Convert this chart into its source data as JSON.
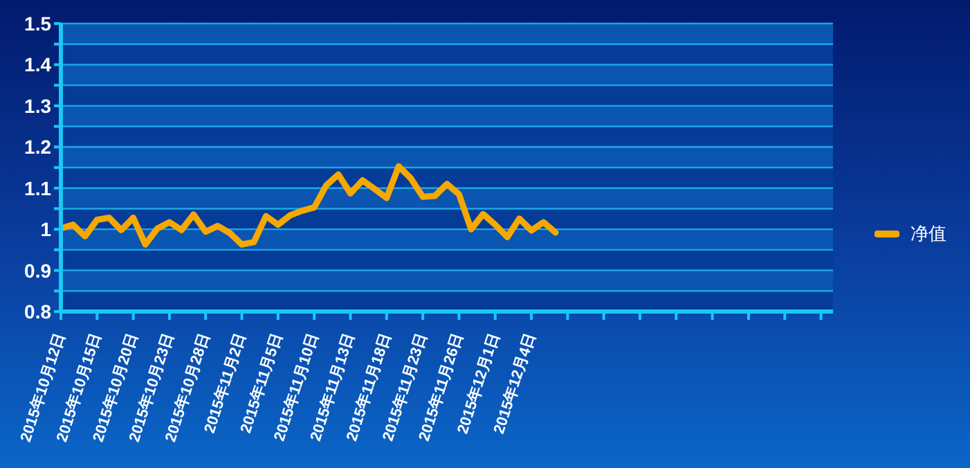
{
  "chart_data": {
    "type": "line",
    "categories": [
      "2015年10月12日",
      null,
      null,
      "2015年10月15日",
      null,
      null,
      "2015年10月20日",
      null,
      null,
      "2015年10月23日",
      null,
      null,
      "2015年10月28日",
      null,
      null,
      "2015年11月2日",
      null,
      null,
      "2015年11月5日",
      null,
      null,
      "2015年11月10日",
      null,
      null,
      "2015年11月13日",
      null,
      null,
      "2015年11月18日",
      null,
      null,
      "2015年11月23日",
      null,
      null,
      "2015年11月26日",
      null,
      null,
      "2015年12月1日",
      null,
      null,
      "2015年12月4日",
      null,
      null,
      null,
      null,
      null,
      null,
      null,
      null,
      null,
      null,
      null,
      null,
      null,
      null,
      null,
      null,
      null,
      null,
      null,
      null,
      null,
      null,
      null,
      null,
      null
    ],
    "series": [
      {
        "name": "净值",
        "color": "#f5a800",
        "values": [
          1.002,
          1.011,
          0.983,
          1.023,
          1.028,
          0.998,
          1.028,
          0.963,
          1.002,
          1.017,
          0.998,
          1.036,
          0.994,
          1.008,
          0.991,
          0.963,
          0.969,
          1.032,
          1.011,
          1.034,
          1.045,
          1.053,
          1.107,
          1.133,
          1.087,
          1.119,
          1.098,
          1.076,
          1.153,
          1.124,
          1.079,
          1.081,
          1.11,
          1.085,
          1.0,
          1.037,
          1.011,
          0.981,
          1.026,
          0.997,
          1.017,
          0.992,
          null,
          null,
          null,
          null,
          null,
          null,
          null,
          null,
          null,
          null,
          null,
          null,
          null,
          null,
          null,
          null,
          null,
          null,
          null,
          null,
          null,
          null,
          null
        ]
      }
    ],
    "ylim": [
      0.8,
      1.5
    ],
    "yticks": [
      0.8,
      {
        "value": 0.85,
        "label": null
      },
      0.9,
      {
        "value": 0.95,
        "label": null
      },
      {
        "value": 1,
        "label": "1"
      },
      {
        "value": 1.05,
        "label": null
      },
      1.1,
      {
        "value": 1.15,
        "label": null
      },
      1.2,
      {
        "value": 1.25,
        "label": null
      },
      1.3,
      {
        "value": 1.35,
        "label": null
      },
      1.4,
      {
        "value": 1.45,
        "label": null
      },
      1.5
    ],
    "grid": "y",
    "legend": "right",
    "marker": "none",
    "line_style": "solid"
  }
}
